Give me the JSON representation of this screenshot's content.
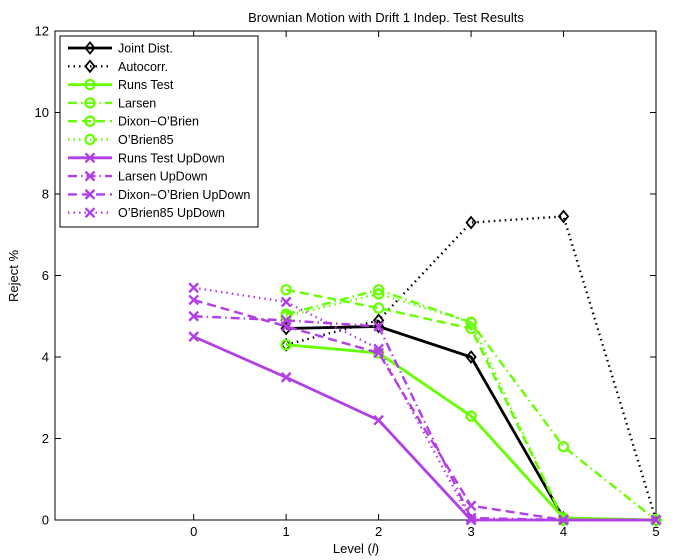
{
  "chart_data": {
    "type": "line",
    "title": "Brownian Motion with Drift 1 Indep. Test Results",
    "xlabel": "Level (l)",
    "xlabel_prefix": "Level (",
    "xlabel_var": "l",
    "xlabel_suffix": ")",
    "ylabel": "Reject %",
    "xlim": [
      -1.5,
      5
    ],
    "ylim": [
      0,
      12
    ],
    "xticks": [
      0,
      1,
      2,
      3,
      4,
      5
    ],
    "yticks": [
      0,
      2,
      4,
      6,
      8,
      10,
      12
    ],
    "legend_position": "top-left",
    "colors": {
      "black": "#000000",
      "green": "#66ff00",
      "purple": "#b23ee6"
    },
    "series": [
      {
        "name": "Joint Dist.",
        "color": "#000000",
        "dash": "solid",
        "marker": "diamond",
        "x": [
          1,
          2,
          3,
          4
        ],
        "values": [
          4.7,
          4.75,
          4.0,
          0.05
        ]
      },
      {
        "name": "Autocorr.",
        "color": "#000000",
        "dash": "dotted",
        "marker": "diamond",
        "x": [
          1,
          2,
          3,
          4,
          5
        ],
        "values": [
          4.3,
          4.9,
          7.3,
          7.45,
          0.0
        ]
      },
      {
        "name": "Runs Test",
        "color": "#66ff00",
        "dash": "solid",
        "marker": "circle",
        "x": [
          1,
          2,
          3,
          4,
          5
        ],
        "values": [
          4.3,
          4.1,
          2.55,
          0.05,
          0.0
        ]
      },
      {
        "name": "Larsen",
        "color": "#66ff00",
        "dash": "dashdot",
        "marker": "circle",
        "x": [
          1,
          2,
          3,
          4,
          5
        ],
        "values": [
          5.05,
          5.65,
          4.85,
          1.8,
          0.0
        ]
      },
      {
        "name": "Dixon−O’Brien",
        "color": "#66ff00",
        "dash": "dashed",
        "marker": "circle",
        "x": [
          1,
          2,
          3,
          4,
          5
        ],
        "values": [
          5.65,
          5.2,
          4.7,
          0.0,
          0.0
        ]
      },
      {
        "name": "O’Brien85",
        "color": "#66ff00",
        "dash": "dotted",
        "marker": "circle",
        "x": [
          1,
          2,
          3,
          4,
          5
        ],
        "values": [
          5.0,
          5.55,
          4.85,
          0.0,
          0.0
        ]
      },
      {
        "name": "Runs Test UpDown",
        "color": "#b23ee6",
        "dash": "solid",
        "marker": "x",
        "x": [
          0,
          1,
          2,
          3,
          4,
          5
        ],
        "values": [
          4.5,
          3.5,
          2.45,
          0.0,
          0.0,
          0.0
        ]
      },
      {
        "name": "Larsen UpDown",
        "color": "#b23ee6",
        "dash": "dashdot",
        "marker": "x",
        "x": [
          0,
          1,
          2,
          3,
          4,
          5
        ],
        "values": [
          5.0,
          4.9,
          4.75,
          0.05,
          0.0,
          0.0
        ]
      },
      {
        "name": "Dixon−O’Brien UpDown",
        "color": "#b23ee6",
        "dash": "dashed",
        "marker": "x",
        "x": [
          0,
          1,
          2,
          3,
          4,
          5
        ],
        "values": [
          5.4,
          4.75,
          4.1,
          0.35,
          0.0,
          0.0
        ]
      },
      {
        "name": "O’Brien85 UpDown",
        "color": "#b23ee6",
        "dash": "dotted",
        "marker": "x",
        "x": [
          0,
          1,
          2,
          3,
          4,
          5
        ],
        "values": [
          5.7,
          5.35,
          4.2,
          0.0,
          0.0,
          0.0
        ]
      }
    ]
  }
}
